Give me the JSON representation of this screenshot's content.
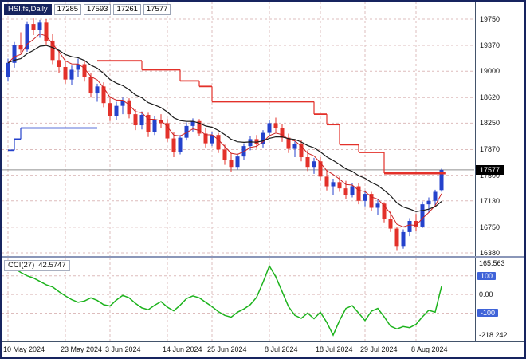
{
  "header": {
    "symbol": "HSI,fs,Daily",
    "open": "17285",
    "high": "17593",
    "low": "17261",
    "close": "17577"
  },
  "price_tag": "17577",
  "cci_header": {
    "label": "CCI(27)",
    "value": "42.5747"
  },
  "colors": {
    "up": "#2442cc",
    "down": "#e3312a",
    "ma_slow": "#1a1a1a",
    "ma_fast": "#cc2222",
    "trend_up": "#2442cc",
    "trend_down": "#e3312a",
    "cci_line": "#1db31d",
    "grid": "#ddbcbc",
    "level_box": "#3f63d8",
    "frame": "#17245f",
    "price_line": "#8f8f8f"
  },
  "chart_data": [
    {
      "type": "candlestick",
      "title": "HSI,fs,Daily",
      "ohlc_display": [
        "17285",
        "17593",
        "17261",
        "17577"
      ],
      "current_price": 17577,
      "ylim": [
        16300,
        19880
      ],
      "y_ticks": [
        19750,
        19370,
        19000,
        18620,
        18250,
        17870,
        17500,
        17130,
        16750,
        16380
      ],
      "date_ticks": [
        {
          "i": 0,
          "label": "10 May 2024"
        },
        {
          "i": 9,
          "label": "23 May 2024"
        },
        {
          "i": 16,
          "label": "3 Jun 2024"
        },
        {
          "i": 25,
          "label": "14 Jun 2024"
        },
        {
          "i": 32,
          "label": "25 Jun 2024"
        },
        {
          "i": 41,
          "label": "8 Jul 2024"
        },
        {
          "i": 49,
          "label": "18 Jul 2024"
        },
        {
          "i": 56,
          "label": "29 Jul 2024"
        },
        {
          "i": 64,
          "label": "8 Aug 2024"
        }
      ],
      "candles": [
        [
          18920,
          19180,
          18850,
          19120
        ],
        [
          19120,
          19420,
          19050,
          19380
        ],
        [
          19380,
          19560,
          19260,
          19310
        ],
        [
          19310,
          19720,
          19280,
          19680
        ],
        [
          19680,
          19760,
          19520,
          19600
        ],
        [
          19600,
          19740,
          19480,
          19700
        ],
        [
          19700,
          19750,
          19380,
          19440
        ],
        [
          19440,
          19540,
          19100,
          19160
        ],
        [
          19160,
          19300,
          18980,
          19060
        ],
        [
          19060,
          19150,
          18820,
          18880
        ],
        [
          18880,
          19080,
          18800,
          19020
        ],
        [
          19020,
          19180,
          18920,
          19100
        ],
        [
          19100,
          19160,
          18850,
          18920
        ],
        [
          18920,
          18980,
          18620,
          18680
        ],
        [
          18680,
          18820,
          18560,
          18780
        ],
        [
          18780,
          18840,
          18480,
          18540
        ],
        [
          18540,
          18640,
          18280,
          18350
        ],
        [
          18350,
          18560,
          18300,
          18500
        ],
        [
          18500,
          18620,
          18380,
          18580
        ],
        [
          18580,
          18610,
          18320,
          18380
        ],
        [
          18380,
          18450,
          18150,
          18220
        ],
        [
          18220,
          18420,
          18160,
          18370
        ],
        [
          18370,
          18400,
          18050,
          18120
        ],
        [
          18120,
          18350,
          18080,
          18300
        ],
        [
          18300,
          18380,
          18180,
          18250
        ],
        [
          18250,
          18310,
          17980,
          18030
        ],
        [
          18030,
          18120,
          17760,
          17830
        ],
        [
          17830,
          18080,
          17800,
          18040
        ],
        [
          18040,
          18260,
          18000,
          18210
        ],
        [
          18210,
          18320,
          18130,
          18280
        ],
        [
          18280,
          18310,
          18060,
          18100
        ],
        [
          18100,
          18180,
          17900,
          17960
        ],
        [
          17960,
          18120,
          17920,
          18080
        ],
        [
          18080,
          18110,
          17820,
          17870
        ],
        [
          17870,
          17940,
          17650,
          17720
        ],
        [
          17720,
          17820,
          17550,
          17620
        ],
        [
          17620,
          17810,
          17580,
          17770
        ],
        [
          17770,
          17960,
          17720,
          17920
        ],
        [
          17920,
          18060,
          17860,
          18020
        ],
        [
          18020,
          18080,
          17880,
          17950
        ],
        [
          17950,
          18150,
          17900,
          18110
        ],
        [
          18110,
          18290,
          18060,
          18250
        ],
        [
          18250,
          18330,
          18120,
          18180
        ],
        [
          18180,
          18240,
          17980,
          18040
        ],
        [
          18040,
          18100,
          17820,
          17880
        ],
        [
          17880,
          17990,
          17760,
          17950
        ],
        [
          17950,
          18010,
          17700,
          17760
        ],
        [
          17760,
          17860,
          17560,
          17620
        ],
        [
          17620,
          17750,
          17520,
          17700
        ],
        [
          17700,
          17760,
          17420,
          17480
        ],
        [
          17480,
          17580,
          17280,
          17340
        ],
        [
          17340,
          17450,
          17220,
          17400
        ],
        [
          17400,
          17480,
          17260,
          17310
        ],
        [
          17310,
          17420,
          17150,
          17210
        ],
        [
          17210,
          17380,
          17180,
          17340
        ],
        [
          17340,
          17390,
          17080,
          17130
        ],
        [
          17130,
          17280,
          17050,
          17230
        ],
        [
          17230,
          17260,
          16980,
          17030
        ],
        [
          17030,
          17150,
          16920,
          17090
        ],
        [
          17090,
          17110,
          16820,
          16870
        ],
        [
          16870,
          16980,
          16680,
          16730
        ],
        [
          16730,
          16760,
          16420,
          16480
        ],
        [
          16480,
          16720,
          16440,
          16680
        ],
        [
          16680,
          16880,
          16620,
          16840
        ],
        [
          16840,
          16940,
          16700,
          16760
        ],
        [
          16760,
          17120,
          16740,
          17080
        ],
        [
          17080,
          17180,
          16960,
          17130
        ],
        [
          17130,
          17290,
          17060,
          17260
        ],
        [
          17285,
          17593,
          17261,
          17577
        ]
      ],
      "ema_fast_period": 5,
      "ema_slow_period": 13,
      "trend_steps": {
        "up": [
          {
            "i1": 0,
            "i2": 1,
            "p": 17860
          },
          {
            "i1": 1,
            "i2": 2,
            "p": 18020
          },
          {
            "i1": 2,
            "i2": 14,
            "p": 18180
          }
        ],
        "down": [
          {
            "i1": 14,
            "i2": 21,
            "p": 19150
          },
          {
            "i1": 21,
            "i2": 27,
            "p": 19020
          },
          {
            "i1": 27,
            "i2": 30,
            "p": 18860
          },
          {
            "i1": 30,
            "i2": 32,
            "p": 18780
          },
          {
            "i1": 32,
            "i2": 48,
            "p": 18560
          },
          {
            "i1": 48,
            "i2": 50,
            "p": 18380
          },
          {
            "i1": 50,
            "i2": 52,
            "p": 18230
          },
          {
            "i1": 52,
            "i2": 55,
            "p": 17940
          },
          {
            "i1": 55,
            "i2": 59,
            "p": 17830
          },
          {
            "i1": 59,
            "i2": 68.6,
            "p": 17530,
            "bold": true
          }
        ]
      }
    },
    {
      "type": "line",
      "title": "CCI(27)",
      "last_value": 42.5747,
      "ylim": [
        -235,
        180
      ],
      "levels": [
        100,
        0,
        -100
      ],
      "y_labels": [
        {
          "v": 165.563,
          "label": "165.563",
          "box": false
        },
        {
          "v": 100,
          "label": "100",
          "box": true
        },
        {
          "v": 0,
          "label": "0.00",
          "box": false
        },
        {
          "v": -100,
          "label": "-100",
          "box": true
        },
        {
          "v": -218.242,
          "label": "-218.242",
          "box": false
        }
      ],
      "values": [
        165.563,
        140,
        118,
        100,
        88,
        70,
        52,
        40,
        15,
        -8,
        -28,
        -42,
        -35,
        -18,
        -32,
        -55,
        -62,
        -30,
        -5,
        -18,
        -48,
        -72,
        -82,
        -58,
        -38,
        -68,
        -88,
        -58,
        -22,
        -8,
        -18,
        -42,
        -65,
        -92,
        -112,
        -122,
        -95,
        -78,
        -55,
        -15,
        65,
        152,
        95,
        15,
        -65,
        -112,
        -128,
        -100,
        -130,
        -95,
        -150,
        -218.242,
        -140,
        -75,
        -60,
        -100,
        -140,
        -90,
        -75,
        -120,
        -170,
        -185,
        -172,
        -178,
        -160,
        -120,
        -85,
        -95,
        42.5747
      ]
    }
  ]
}
